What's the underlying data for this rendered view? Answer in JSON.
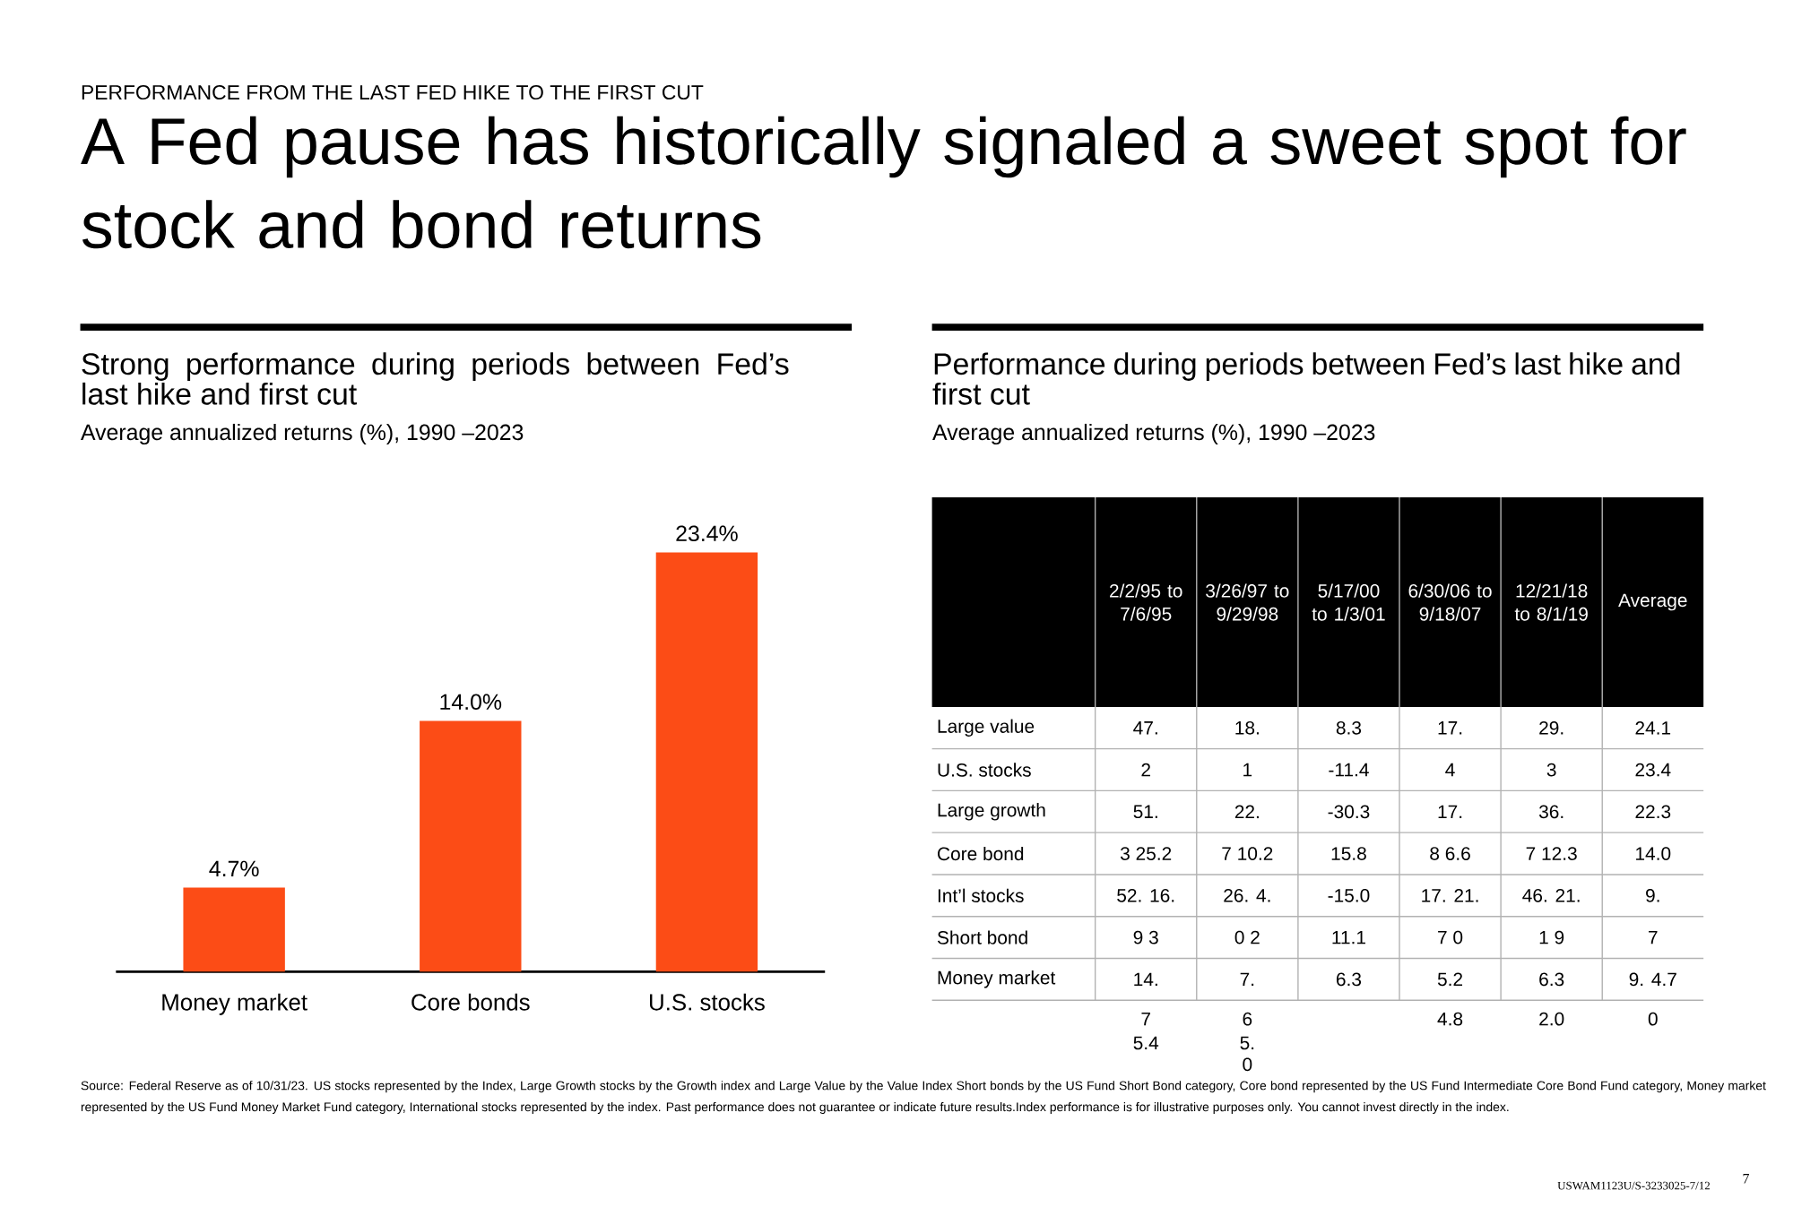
{
  "chart_data": [
    {
      "type": "bar",
      "title": "Strong performance during periods between Fed’s last hike and first cut",
      "subtitle": "Average annualized returns (%), 1990 –2023",
      "annotations": [
        "PERFORMANCE FROM THE LAST FED HIKE TO THE FIRST CUT",
        "A Fed pause has historically signaled a sweet spot for stock and bond returns"
      ],
      "categories": [
        "Money market",
        "Core bonds",
        "U.S. stocks"
      ],
      "values": [
        4.7,
        14.0,
        23.4
      ],
      "value_labels": [
        "4.7%",
        "14.0%",
        "23.4%"
      ],
      "color": "#fc4c16"
    },
    {
      "type": "other",
      "title": "Performance during periods between Fed’s last hike and first cut",
      "subtitle": "Average annualized returns (%), 1990 –2023",
      "categories": [
        null,
        "2/2/95 to 7/6/95",
        "3/26/97 to 9/29/98",
        "5/17/00 to 1/3/01",
        "6/30/06 to 9/18/07",
        "12/21/18 to 8/1/19",
        "Average"
      ],
      "y_categories": [
        "Large value",
        "U.S. stocks",
        "Large growth",
        "Core bond",
        "Int’l stocks",
        "Short bond",
        "Money market",
        null,
        null,
        null
      ],
      "cell_labels": [
        [
          "47.",
          "18.",
          "8.3",
          "17.",
          "29.",
          "24.1"
        ],
        [
          "2",
          "1",
          "-11.4",
          "4",
          "3",
          "23.4"
        ],
        [
          "51.",
          "22.",
          "-30.3",
          "17.",
          "36.",
          "22.3"
        ],
        [
          "3 25.2",
          "7 10.2",
          "15.8",
          "8 6.6",
          "7 12.3",
          "14.0"
        ],
        [
          "52. 16.",
          "26. 4.",
          "-15.0",
          "17. 21.",
          "46. 21.",
          "9."
        ],
        [
          "9 3",
          "0 2",
          "11.1",
          "7 0",
          "1 9",
          "7"
        ],
        [
          "14.",
          "7.",
          "6.3",
          "5.2",
          "6.3",
          "9. 4.7"
        ],
        [
          "7",
          "6",
          null,
          "4.8",
          "2.0",
          "0"
        ],
        [
          "5.4",
          "5.",
          null,
          null,
          null,
          null
        ],
        [
          null,
          "0",
          null,
          null,
          null,
          null
        ]
      ],
      "annotations": [
        "Source: Federal Reserve as of 10/31/23. US stocks represented by the Index, Large Growth stocks by the Growth index and Large Value by the Value Index Short bonds by the US Fund Short Bond category, Core bond represented by the US Fund Intermediate Core Bond Fund category, Money market represented by the US Fund Money Market Fund category, International stocks represented by the index. Past performance does not guarantee or indicate future results.Index performance is for illustrative purposes only. You cannot invest directly in the index.",
        "USWAM1123U/S-3233025-7/12",
        "7"
      ]
    }
  ]
}
